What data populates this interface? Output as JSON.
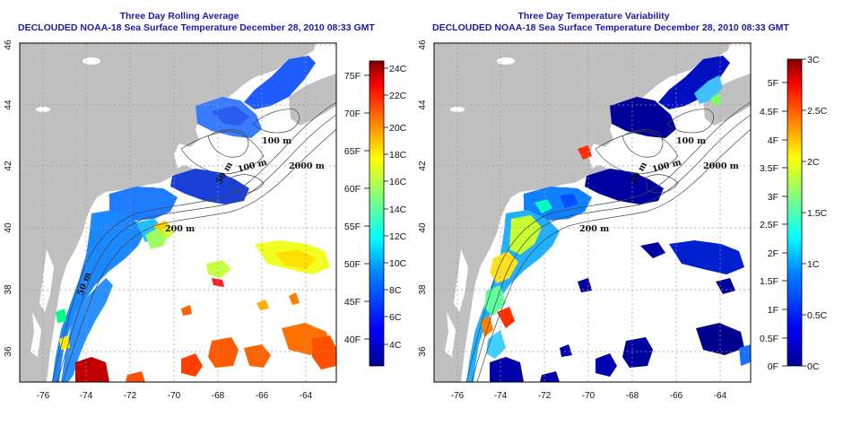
{
  "panels": [
    {
      "id": "left",
      "title_line1": "Three Day Rolling Average",
      "title_line2": "DECLOUDED NOAA-18 Sea Surface Temperature December 28, 2010 08:33 GMT",
      "colorbar_left_labels": [
        "24C",
        "22C",
        "20C",
        "18C",
        "16C",
        "14C",
        "12C",
        "10C",
        "8C",
        "6C",
        "4C"
      ],
      "colorbar_right_labels": [
        "75F",
        "70F",
        "65F",
        "60F",
        "55F",
        "50F",
        "45F",
        "40F"
      ],
      "contour_labels": [
        "100 m",
        "2000 m",
        "100 m",
        "50 m",
        "200 m",
        "50 m"
      ]
    },
    {
      "id": "right",
      "title_line1": "Three Day Temperature Variability",
      "title_line2": "DECLOUDED NOAA-18 Sea Surface Temperature December 28, 2010 08:33 GMT",
      "colorbar_left_labels": [
        "5F",
        "4.5F",
        "4F",
        "3.5F",
        "3F",
        "2.5F",
        "2F",
        "1.5F",
        "1F",
        "0.5F",
        "0F"
      ],
      "colorbar_right_labels": [
        "3C",
        "2.5C",
        "2C",
        "1.5C",
        "1C",
        "0.5C",
        "0C"
      ],
      "contour_labels": [
        "100 m",
        "2000 m",
        "100 m",
        "50 m",
        "200 m"
      ]
    }
  ],
  "axes": {
    "longitude_ticks": [
      "-76",
      "-74",
      "-72",
      "-70",
      "-68",
      "-66",
      "-64"
    ],
    "latitude_ticks": [
      "46",
      "44",
      "42",
      "40",
      "38",
      "36"
    ]
  },
  "colors": {
    "title": "#1a1aa6",
    "land": "#c0c0c0",
    "ocean": "#ffffff",
    "grid": "#9a9a9a"
  }
}
